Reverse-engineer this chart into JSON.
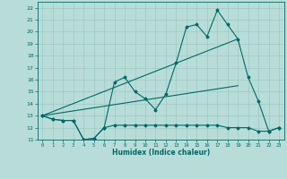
{
  "xlabel": "Humidex (Indice chaleur)",
  "xlim": [
    -0.5,
    23.5
  ],
  "ylim": [
    11,
    22.5
  ],
  "xticks": [
    0,
    1,
    2,
    3,
    4,
    5,
    6,
    7,
    8,
    9,
    10,
    11,
    12,
    13,
    14,
    15,
    16,
    17,
    18,
    19,
    20,
    21,
    22,
    23
  ],
  "yticks": [
    11,
    12,
    13,
    14,
    15,
    16,
    17,
    18,
    19,
    20,
    21,
    22
  ],
  "background_color": "#b8ddd8",
  "grid_color": "#9ec8c2",
  "line_color": "#006868",
  "line1_x": [
    0,
    1,
    2,
    3,
    4,
    5,
    6,
    7,
    8,
    9,
    10,
    11,
    12,
    13,
    14,
    15,
    16,
    17,
    18,
    19,
    20,
    21,
    22,
    23
  ],
  "line1_y": [
    13,
    12.7,
    12.6,
    12.6,
    11,
    11.1,
    12,
    12.2,
    12.2,
    12.2,
    12.2,
    12.2,
    12.2,
    12.2,
    12.2,
    12.2,
    12.2,
    12.2,
    12.0,
    12.0,
    12.0,
    11.7,
    11.7,
    12
  ],
  "line2_x": [
    0,
    1,
    2,
    3,
    4,
    5,
    6,
    7,
    8,
    9,
    10,
    11,
    12,
    13,
    14,
    15,
    16,
    17,
    18,
    19,
    20,
    21,
    22,
    23
  ],
  "line2_y": [
    13,
    12.7,
    12.6,
    12.6,
    11,
    11.1,
    12,
    15.8,
    16.2,
    15.0,
    14.4,
    13.5,
    14.8,
    17.4,
    20.4,
    20.6,
    19.6,
    21.8,
    20.6,
    19.4,
    16.2,
    14.2,
    11.7,
    12
  ],
  "line3_x": [
    0,
    19
  ],
  "line3_y": [
    13,
    19.4
  ],
  "line4_x": [
    0,
    19
  ],
  "line4_y": [
    13,
    15.5
  ]
}
